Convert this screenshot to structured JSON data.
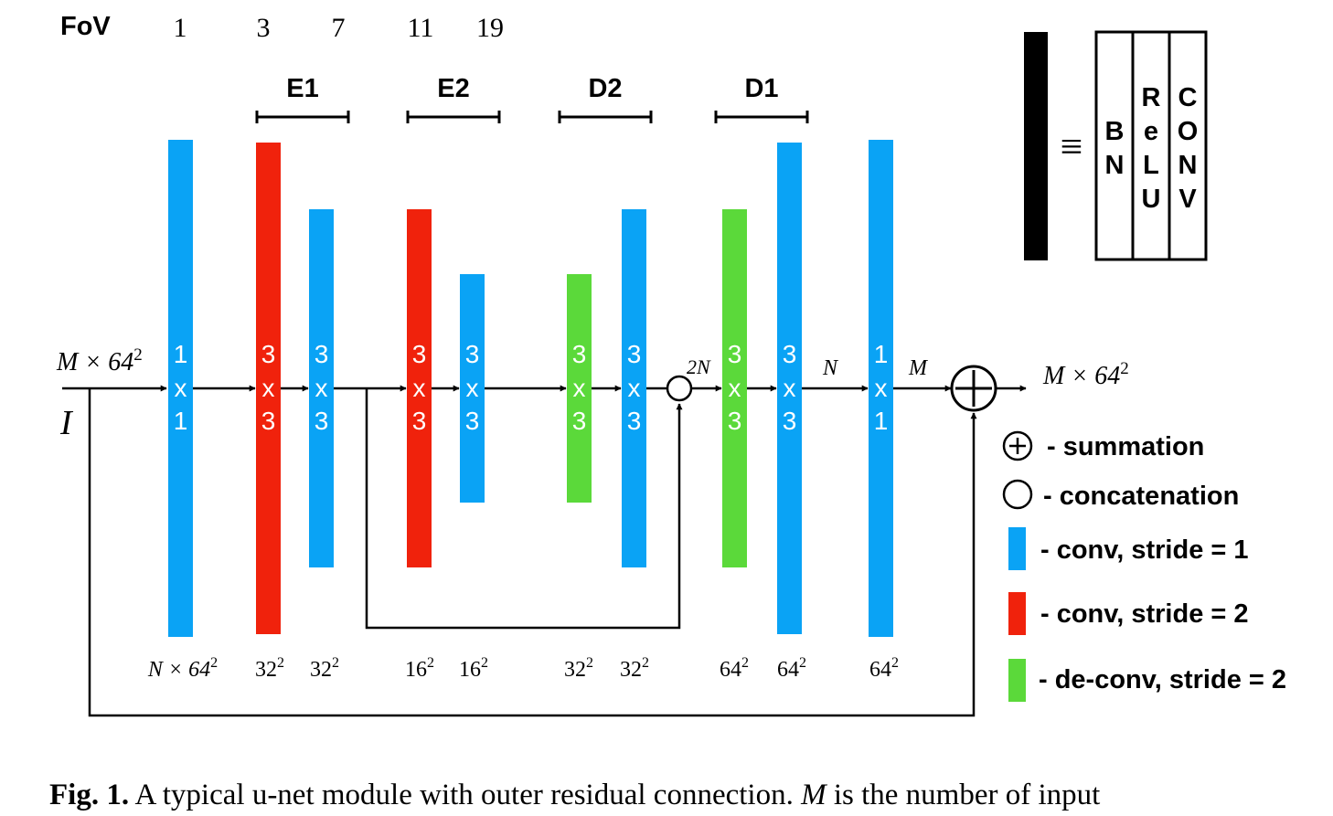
{
  "fov": {
    "label": "FoV",
    "values": [
      "1",
      "3",
      "7",
      "11",
      "19"
    ]
  },
  "stages": [
    "E1",
    "E2",
    "D2",
    "D1"
  ],
  "input": {
    "shape_main": "M × 64",
    "shape_sup": "2",
    "symbol": "I"
  },
  "blocks": [
    {
      "kernel": [
        "1",
        "x",
        "1"
      ],
      "type": "conv1"
    },
    {
      "kernel": [
        "3",
        "x",
        "3"
      ],
      "type": "conv2"
    },
    {
      "kernel": [
        "3",
        "x",
        "3"
      ],
      "type": "conv1"
    },
    {
      "kernel": [
        "3",
        "x",
        "3"
      ],
      "type": "conv2"
    },
    {
      "kernel": [
        "3",
        "x",
        "3"
      ],
      "type": "conv1"
    },
    {
      "kernel": [
        "3",
        "x",
        "3"
      ],
      "type": "deconv"
    },
    {
      "kernel": [
        "3",
        "x",
        "3"
      ],
      "type": "conv1"
    },
    {
      "kernel": [
        "3",
        "x",
        "3"
      ],
      "type": "deconv"
    },
    {
      "kernel": [
        "3",
        "x",
        "3"
      ],
      "type": "conv1"
    },
    {
      "kernel": [
        "1",
        "x",
        "1"
      ],
      "type": "conv1"
    }
  ],
  "resolutions": [
    {
      "base": "N × 64",
      "sup": "2"
    },
    {
      "base": "32",
      "sup": "2"
    },
    {
      "base": "32",
      "sup": "2"
    },
    {
      "base": "16",
      "sup": "2"
    },
    {
      "base": "16",
      "sup": "2"
    },
    {
      "base": "32",
      "sup": "2"
    },
    {
      "base": "32",
      "sup": "2"
    },
    {
      "base": "64",
      "sup": "2"
    },
    {
      "base": "64",
      "sup": "2"
    },
    {
      "base": "64",
      "sup": "2"
    }
  ],
  "channels": {
    "concat": "2N",
    "after_conv": "N",
    "after_final": "M"
  },
  "output": {
    "shape_main": "M × 64",
    "shape_sup": "2"
  },
  "block_def": {
    "equiv": "≡",
    "cols": [
      [
        "B",
        "N"
      ],
      [
        "R",
        "e",
        "L",
        "U"
      ],
      [
        "C",
        "O",
        "N",
        "V"
      ]
    ]
  },
  "legend": [
    {
      "symbol": "sum",
      "text": "- summation"
    },
    {
      "symbol": "concat",
      "text": "- concatenation"
    },
    {
      "symbol": "conv1",
      "text": "- conv, stride = 1"
    },
    {
      "symbol": "conv2",
      "text": "- conv, stride = 2"
    },
    {
      "symbol": "deconv",
      "text": "- de-conv, stride = 2"
    }
  ],
  "caption": {
    "label": "Fig. 1.",
    "text_a": " A typical u-net module with outer residual connection. ",
    "var": "M",
    "text_b": " is the number of input"
  },
  "colors": {
    "conv1": "#0aa3f5",
    "conv2": "#f0220c",
    "deconv": "#5bd93a",
    "line": "#000000"
  }
}
